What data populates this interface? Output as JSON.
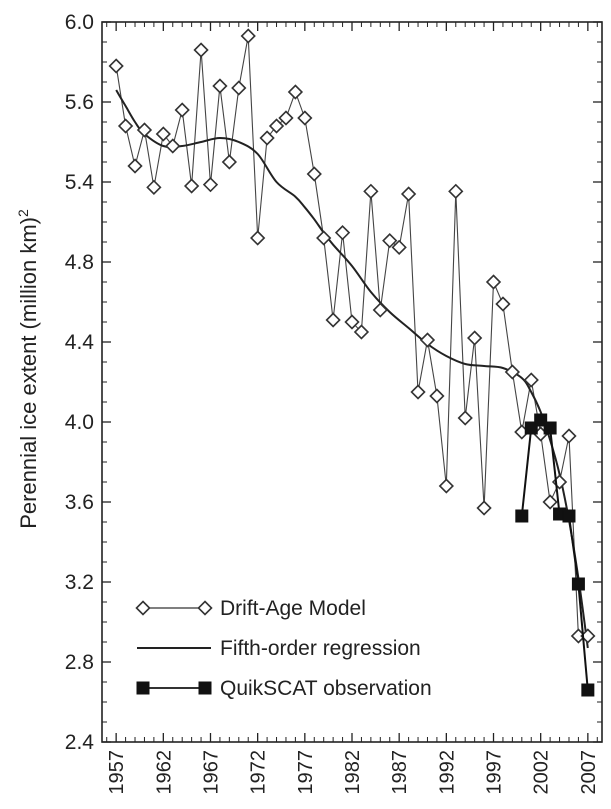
{
  "chart_data": {
    "type": "line",
    "title": "",
    "xlabel": "",
    "ylabel": "Perennial ice extent (million km)",
    "ylabel_superscript": "2",
    "xlim": [
      1955.5,
      2008.5
    ],
    "ylim": [
      2.4,
      6.0
    ],
    "yticks": [
      2.4,
      2.8,
      3.2,
      3.6,
      4.0,
      4.4,
      4.8,
      5.4,
      5.6,
      6.0
    ],
    "ytick_labels": [
      "2.4",
      "2.8",
      "3.2",
      "3.6",
      "4.0",
      "4.4",
      "4.8",
      "5.4",
      "5.6",
      "6.0"
    ],
    "xtick_labels": [
      "1957",
      "1962",
      "1967",
      "1972",
      "1977",
      "1982",
      "1987",
      "1992",
      "1997",
      "2002",
      "2007"
    ],
    "xticks_major": [
      1957,
      1962,
      1967,
      1972,
      1977,
      1982,
      1987,
      1992,
      1997,
      2002,
      2007
    ],
    "grid": false,
    "legend_position": "bottom-left",
    "series": [
      {
        "name": "Drift-Age Model",
        "marker": "open-diamond",
        "color": "#333333",
        "x": [
          1957,
          1958,
          1959,
          1960,
          1961,
          1962,
          1963,
          1964,
          1965,
          1966,
          1967,
          1968,
          1969,
          1970,
          1971,
          1972,
          1973,
          1974,
          1975,
          1976,
          1977,
          1978,
          1979,
          1980,
          1981,
          1982,
          1983,
          1984,
          1985,
          1986,
          1987,
          1988,
          1989,
          1990,
          1991,
          1992,
          1993,
          1994,
          1995,
          1996,
          1997,
          1998,
          1999,
          2000,
          2001,
          2002,
          2003,
          2004,
          2005,
          2006,
          2007
        ],
        "y": [
          5.78,
          5.54,
          5.44,
          5.53,
          5.36,
          5.52,
          5.49,
          5.58,
          5.37,
          5.86,
          5.38,
          5.68,
          5.45,
          5.67,
          5.93,
          4.98,
          5.51,
          5.54,
          5.56,
          5.65,
          5.56,
          5.42,
          4.98,
          4.51,
          5.02,
          4.5,
          4.45,
          5.33,
          4.56,
          4.96,
          4.91,
          5.31,
          4.15,
          4.41,
          4.13,
          3.68,
          5.33,
          4.02,
          4.42,
          3.57,
          4.7,
          4.59,
          4.25,
          3.95,
          4.21,
          3.94,
          3.6,
          3.7,
          3.93,
          2.93,
          2.93
        ]
      },
      {
        "name": "Fifth-order regression",
        "marker": "none",
        "color": "#222222",
        "x": [
          1957,
          1958,
          1959,
          1960,
          1962,
          1964,
          1966,
          1968,
          1970,
          1972,
          1974,
          1976,
          1977,
          1978,
          1979,
          1980,
          1982,
          1984,
          1986,
          1988,
          1990,
          1992,
          1994,
          1996,
          1998,
          2000,
          2001,
          2002,
          2003,
          2004,
          2005,
          2006,
          2007
        ],
        "y": [
          5.66,
          5.59,
          5.55,
          5.52,
          5.49,
          5.49,
          5.5,
          5.51,
          5.5,
          5.47,
          5.4,
          5.29,
          5.21,
          5.12,
          5.02,
          4.93,
          4.78,
          4.65,
          4.55,
          4.47,
          4.39,
          4.33,
          4.29,
          4.28,
          4.27,
          4.22,
          4.15,
          4.05,
          3.91,
          3.74,
          3.51,
          3.22,
          2.87
        ]
      },
      {
        "name": "QuikSCAT observation",
        "marker": "filled-square",
        "color": "#111111",
        "x": [
          2000,
          2001,
          2002,
          2003,
          2004,
          2005,
          2006,
          2007
        ],
        "y": [
          3.53,
          3.97,
          4.01,
          3.97,
          3.54,
          3.53,
          3.19,
          2.66
        ]
      }
    ]
  }
}
